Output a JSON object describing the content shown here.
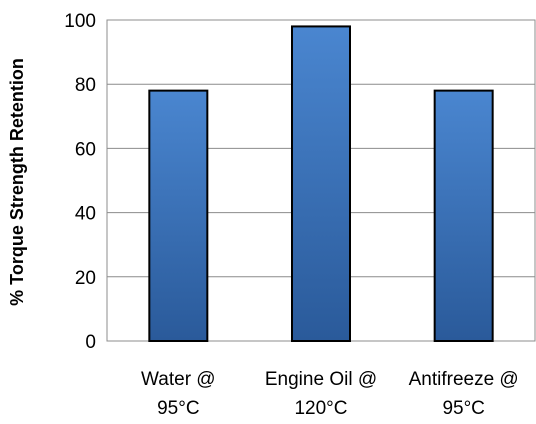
{
  "chart_data": {
    "type": "bar",
    "title": "",
    "xlabel": "",
    "ylabel": "% Torque Strength Retention",
    "ylim": [
      0,
      100
    ],
    "yticks": [
      0,
      20,
      40,
      60,
      80,
      100
    ],
    "grid": true,
    "legend": "none",
    "categories": [
      [
        "Water @",
        "95°C"
      ],
      [
        "Engine Oil @",
        "120°C"
      ],
      [
        "Antifreeze @",
        "95°C"
      ]
    ],
    "values": [
      78,
      98,
      78
    ],
    "colors": {
      "bar_top": "#4a86d0",
      "bar_bottom": "#2a5a9a",
      "bar_border": "#000000",
      "grid": "#8c8c8c"
    }
  }
}
